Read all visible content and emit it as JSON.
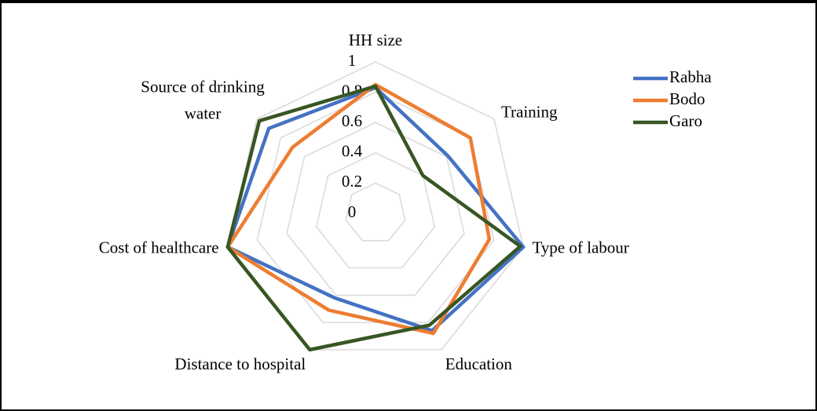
{
  "chart_data": {
    "type": "radar",
    "categories": [
      "HH size",
      "Training",
      "Type of labour",
      "Education",
      "Distance to hospital",
      "Cost of healthcare",
      "Source of drinking water"
    ],
    "series": [
      {
        "name": "Rabha",
        "color": "#4472c4",
        "values": [
          0.83,
          0.61,
          1,
          0.86,
          0.62,
          1,
          0.9
        ]
      },
      {
        "name": "Bodo",
        "color": "#ed7d31",
        "values": [
          0.85,
          0.8,
          0.77,
          0.88,
          0.71,
          1,
          0.7
        ]
      },
      {
        "name": "Garo",
        "color": "#375623",
        "values": [
          0.84,
          0.4,
          0.98,
          0.82,
          1,
          1,
          0.98
        ]
      }
    ],
    "rlim": [
      0,
      1
    ],
    "rticks": [
      0,
      0.2,
      0.4,
      0.6,
      0.8,
      1
    ],
    "grid": true,
    "legend": "top-right"
  }
}
